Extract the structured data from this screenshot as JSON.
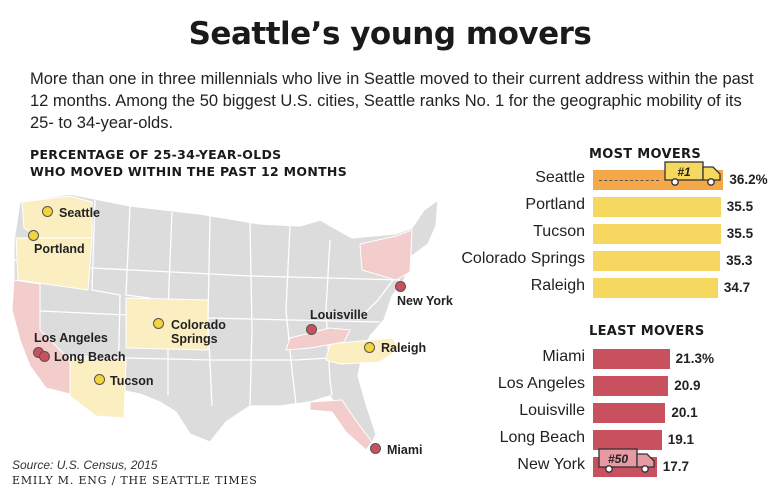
{
  "title": "Seattle’s young movers",
  "intro": "More than one in three millennials who live in Seattle moved to their current address within the past 12 months. Among the 50 biggest U.S. cities, Seattle ranks No. 1  for the geographic mobility of its 25- to 34-year-olds.",
  "map_title_line1": "PERCENTAGE OF 25-34-YEAR-OLDS",
  "map_title_line2": "WHO MOVED WITHIN THE PAST 12 MONTHS",
  "source": "Source: U.S. Census, 2015",
  "credit": "EMILY M. ENG / THE SEATTLE TIMES",
  "colors": {
    "most": "#f6d860",
    "top": "#f5a84a",
    "least": "#c9505e",
    "state_highlight_most": "#fbeec0",
    "state_highlight_least": "#f3cccc",
    "state_base": "#dcdcdc"
  },
  "map_cities": {
    "most": [
      {
        "name": "Seattle"
      },
      {
        "name": "Portland"
      },
      {
        "name": "Colorado Springs",
        "line1": "Colorado",
        "line2": "Springs"
      },
      {
        "name": "Raleigh"
      },
      {
        "name": "Tucson"
      }
    ],
    "least": [
      {
        "name": "New York"
      },
      {
        "name": "Louisville"
      },
      {
        "name": "Los Angeles"
      },
      {
        "name": "Long Beach"
      },
      {
        "name": "Miami"
      }
    ]
  },
  "chart_data": [
    {
      "type": "bar",
      "title": "MOST MOVERS",
      "categories": [
        "Seattle",
        "Portland",
        "Tucson",
        "Colorado Springs",
        "Raleigh"
      ],
      "values": [
        36.2,
        35.5,
        35.5,
        35.3,
        34.7
      ],
      "value_labels": [
        "36.2%",
        "35.5",
        "35.5",
        "35.3",
        "34.7"
      ],
      "badge": {
        "category": "Seattle",
        "text": "#1"
      }
    },
    {
      "type": "bar",
      "title": "LEAST MOVERS",
      "categories": [
        "Miami",
        "Los Angeles",
        "Louisville",
        "Long Beach",
        "New York"
      ],
      "values": [
        21.3,
        20.9,
        20.1,
        19.1,
        17.7
      ],
      "value_labels": [
        "21.3%",
        "20.9",
        "20.1",
        "19.1",
        "17.7"
      ],
      "badge": {
        "category": "New York",
        "text": "#50"
      }
    }
  ]
}
